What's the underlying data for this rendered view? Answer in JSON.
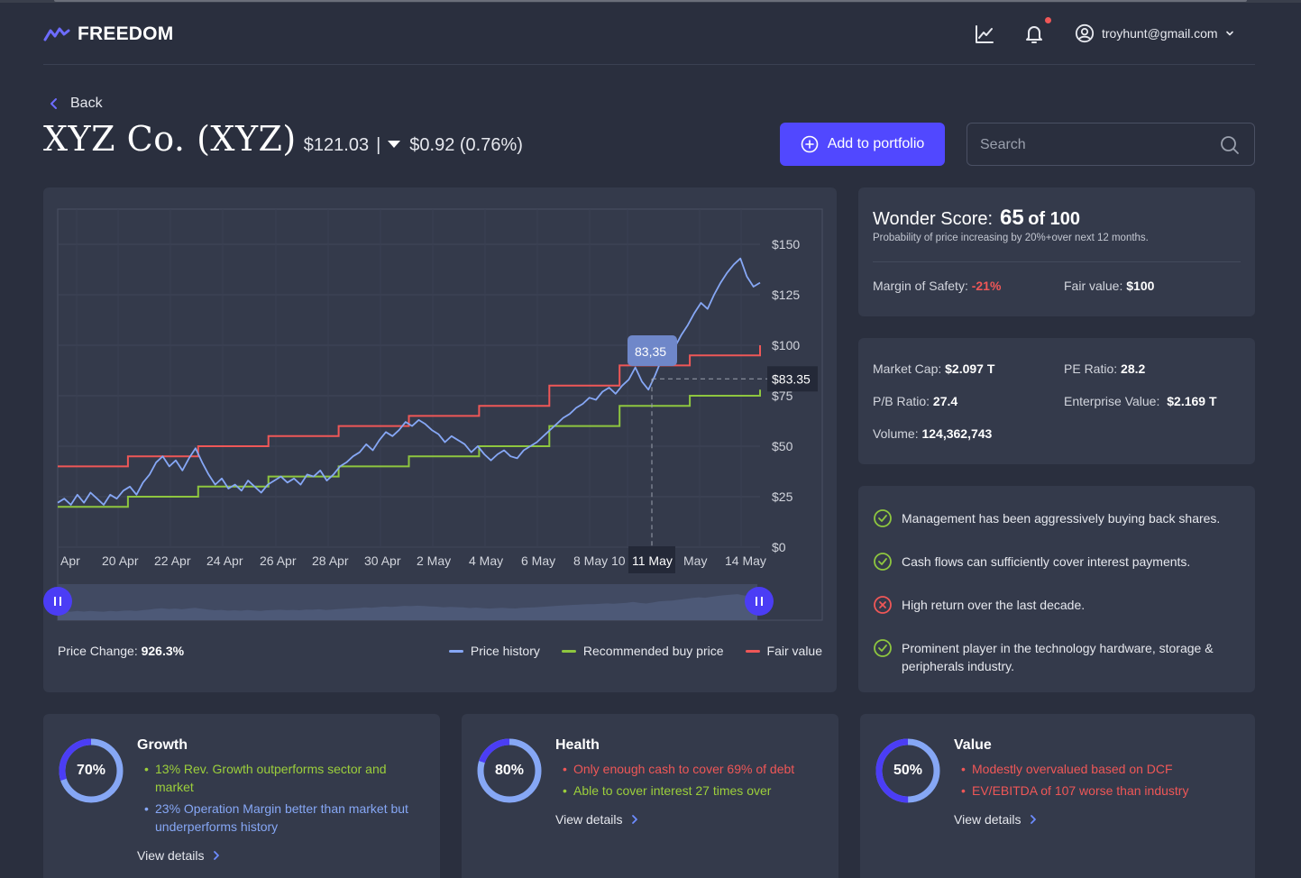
{
  "header": {
    "brand": "FREEDOM",
    "account_email": "troyhunt@gmail.com",
    "icons": [
      "chart-line-icon",
      "bell-icon",
      "user-circle-icon",
      "chevron-down-icon"
    ]
  },
  "nav": {
    "back_label": "Back"
  },
  "stock": {
    "name": "XYZ Co. (XYZ)",
    "price": "$121.03",
    "separator": "|",
    "change": "$0.92 (0.76%)",
    "direction": "down"
  },
  "actions": {
    "add_label": "Add to portfolio",
    "search_placeholder": "Search"
  },
  "colors": {
    "accent": "#5148ff",
    "price_history": "#86a7f5",
    "buy_price": "#8ec63f",
    "fair_value": "#ef5757",
    "card_bg": "#343a4b",
    "page_bg": "#2a2f3e"
  },
  "chart_data": {
    "type": "line",
    "x_tick_labels": [
      "Apr",
      "20 Apr",
      "22 Apr",
      "24 Apr",
      "26 Apr",
      "28 Apr",
      "30 Apr",
      "2 May",
      "4 May",
      "6 May",
      "8 May",
      "10",
      "May",
      "14 May"
    ],
    "y_tick_labels": [
      "$150",
      "$125",
      "$100",
      "$75",
      "$50",
      "$25",
      "$0"
    ],
    "y_ticks": [
      150,
      125,
      100,
      75,
      50,
      25,
      0
    ],
    "ylim": [
      0,
      150
    ],
    "crosshair": {
      "x_label": "11 May",
      "y_label": "$83.35",
      "tooltip": "83,35",
      "value": 83.35
    },
    "grid": true,
    "legend_position": "bottom-right",
    "series": [
      {
        "name": "Price history",
        "color": "#86a7f5",
        "values": [
          22,
          24,
          21,
          26,
          22,
          27,
          24,
          21,
          26,
          24,
          28,
          30,
          26,
          32,
          36,
          42,
          45,
          40,
          43,
          38,
          44,
          49,
          42,
          36,
          31,
          34,
          29,
          31,
          28,
          33,
          30,
          27,
          31,
          33,
          35,
          32,
          34,
          31,
          36,
          35,
          38,
          33,
          36,
          40,
          42,
          45,
          47,
          51,
          48,
          53,
          57,
          55,
          58,
          62,
          60,
          63,
          61,
          58,
          56,
          52,
          55,
          53,
          51,
          47,
          50,
          46,
          43,
          46,
          48,
          45,
          44,
          48,
          50,
          52,
          55,
          58,
          61,
          64,
          66,
          69,
          71,
          74,
          73,
          77,
          79,
          76,
          80,
          83,
          89,
          82,
          78,
          85,
          93,
          96,
          99,
          105,
          110,
          116,
          121,
          118,
          125,
          131,
          136,
          140,
          143,
          134,
          129,
          131
        ]
      },
      {
        "name": "Recommended buy price",
        "color": "#8ec63f",
        "steps": [
          [
            0,
            20
          ],
          [
            10,
            25
          ],
          [
            20,
            30
          ],
          [
            30,
            35
          ],
          [
            40,
            40
          ],
          [
            50,
            45
          ],
          [
            60,
            50
          ],
          [
            70,
            60
          ],
          [
            80,
            70
          ],
          [
            90,
            75
          ],
          [
            100,
            78
          ]
        ]
      },
      {
        "name": "Fair value",
        "color": "#ef5757",
        "steps": [
          [
            0,
            40
          ],
          [
            10,
            45
          ],
          [
            20,
            50
          ],
          [
            30,
            55
          ],
          [
            40,
            60
          ],
          [
            50,
            65
          ],
          [
            60,
            70
          ],
          [
            70,
            80
          ],
          [
            80,
            90
          ],
          [
            90,
            95
          ],
          [
            100,
            100
          ]
        ]
      }
    ],
    "navigator": {
      "handles": [
        "left",
        "right"
      ]
    }
  },
  "chart_footer": {
    "price_change_label": "Price Change:",
    "price_change_value": "926.3%",
    "legend": [
      {
        "label": "Price history",
        "color": "#86a7f5"
      },
      {
        "label": "Recommended buy price",
        "color": "#8ec63f"
      },
      {
        "label": "Fair value",
        "color": "#ef5757"
      }
    ]
  },
  "wonder": {
    "label": "Wonder Score:",
    "score": "65",
    "of": "of 100",
    "subtitle": "Probability of price increasing by 20%+over next 12 months.",
    "margin_label": "Margin of Safety:",
    "margin_value": "-21%",
    "fair_label": "Fair value:",
    "fair_value": "$100"
  },
  "stats": {
    "market_cap_label": "Market Cap:",
    "market_cap_value": "$2.097 T",
    "pe_label": "PE Ratio:",
    "pe_value": "28.2",
    "pb_label": "P/B Ratio:",
    "pb_value": "27.4",
    "ev_label": "Enterprise Value:",
    "ev_value": "$2.169 T",
    "volume_label": "Volume:",
    "volume_value": "124,362,743"
  },
  "checks": [
    {
      "status": "pass",
      "text": "Management has been aggressively buying back shares."
    },
    {
      "status": "pass",
      "text": "Cash flows can sufficiently cover interest payments."
    },
    {
      "status": "fail",
      "text": "High return over the last decade."
    },
    {
      "status": "pass",
      "text": "Prominent player in the technology hardware, storage & peripherals  industry."
    }
  ],
  "scores": [
    {
      "title": "Growth",
      "percent": 70,
      "percent_label": "70%",
      "bullets": [
        {
          "text": "13% Rev. Growth outperforms sector and market",
          "tone": "green"
        },
        {
          "text": "23% Operation Margin better than market but underperforms history",
          "tone": "blue"
        }
      ],
      "view_label": "View details"
    },
    {
      "title": "Health",
      "percent": 80,
      "percent_label": "80%",
      "bullets": [
        {
          "text": "Only enough cash to cover 69% of debt",
          "tone": "red"
        },
        {
          "text": "Able to cover interest 27 times over",
          "tone": "green"
        }
      ],
      "view_label": "View details"
    },
    {
      "title": "Value",
      "percent": 50,
      "percent_label": "50%",
      "bullets": [
        {
          "text": "Modestly overvalued based on DCF",
          "tone": "red"
        },
        {
          "text": "EV/EBITDA of 107 worse than industry",
          "tone": "red"
        }
      ],
      "view_label": "View details"
    }
  ]
}
